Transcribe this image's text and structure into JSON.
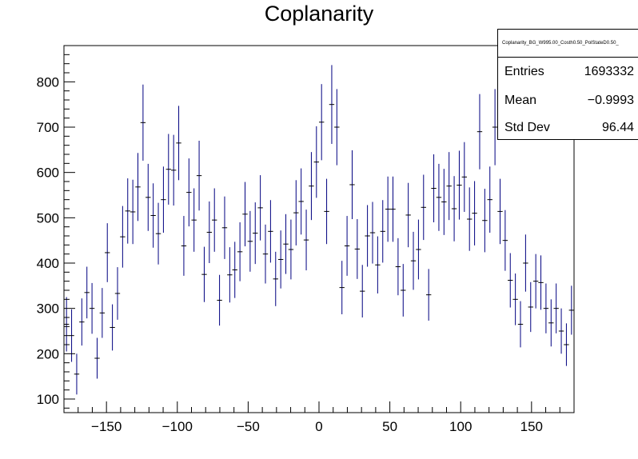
{
  "chart_data": {
    "type": "histogram-errorbars",
    "title": "Coplanarity",
    "xlabel": "",
    "ylabel": "",
    "xlim": [
      -180,
      180
    ],
    "ylim": [
      70,
      880
    ],
    "xticks": [
      -150,
      -100,
      -50,
      0,
      50,
      100,
      150
    ],
    "yticks": [
      100,
      200,
      300,
      400,
      500,
      600,
      700,
      800
    ],
    "bin_width": 3.6,
    "color": "#000080",
    "stats": {
      "name": "Coplanarity_BG_W995.00_Costh0.50_PolStateD0.50_",
      "entries_label": "Entries",
      "entries": "1693332",
      "mean_label": "Mean",
      "mean": "−0.9993",
      "std_label": "Std Dev",
      "std": "96.44"
    },
    "series": [
      {
        "x": [
          -178.2,
          -174.6,
          -171.0,
          -167.4,
          -163.8,
          -160.2,
          -156.6,
          -153.0,
          -149.4,
          -145.8,
          -142.2,
          -138.6,
          -135.0,
          -131.4,
          -127.8,
          -124.2,
          -120.6,
          -117.0,
          -113.4,
          -109.8,
          -106.2,
          -102.6,
          -99.0,
          -95.4,
          -91.8,
          -88.2,
          -84.6,
          -81.0,
          -77.4,
          -73.8,
          -70.2,
          -66.6,
          -63.0,
          -59.4,
          -55.8,
          -52.2,
          -48.6,
          -45.0,
          -41.4,
          -37.8,
          -34.2,
          -30.6,
          -27.0,
          -23.4,
          -19.8,
          -16.2,
          -12.6,
          -9.0,
          -5.4,
          -1.8,
          1.8,
          5.4,
          9.0,
          12.6,
          16.2,
          19.8,
          23.4,
          27.0,
          30.6,
          34.2,
          37.8,
          41.4,
          45.0,
          48.6,
          52.2,
          55.8,
          59.4,
          63.0,
          66.6,
          70.2,
          73.8,
          77.4,
          81.0,
          84.6,
          88.2,
          91.8,
          95.4,
          99.0,
          102.6,
          106.2,
          109.8,
          113.4,
          117.0,
          120.6,
          124.2,
          127.8,
          131.4,
          135.0,
          138.6,
          142.2,
          145.8,
          149.4,
          153.0,
          156.6,
          160.2,
          163.8,
          167.4,
          171.0,
          174.6,
          178.2
        ],
        "y": [
          265,
          240,
          155,
          270,
          335,
          300,
          190,
          290,
          423,
          258,
          333,
          458,
          515,
          513,
          568,
          710,
          545,
          505,
          465,
          540,
          607,
          605,
          665,
          438,
          556,
          495,
          593,
          375,
          468,
          495,
          318,
          478,
          374,
          385,
          425,
          508,
          448,
          466,
          522,
          420,
          470,
          365,
          408,
          442,
          430,
          511,
          536,
          451,
          570,
          623,
          711,
          514,
          750,
          700,
          346,
          438,
          573,
          431,
          338,
          460,
          467,
          396,
          470,
          519,
          519,
          392,
          340,
          506,
          405,
          430,
          523,
          330,
          565,
          545,
          535,
          570,
          520,
          572,
          590,
          497,
          510,
          690,
          494,
          540,
          700,
          514,
          450,
          362,
          320,
          265,
          400,
          303,
          360,
          357,
          300,
          268,
          300,
          250,
          220,
          296
        ],
        "err": [
          60,
          58,
          45,
          52,
          57,
          56,
          45,
          55,
          65,
          51,
          58,
          68,
          72,
          71,
          75,
          84,
          74,
          71,
          68,
          73,
          78,
          78,
          82,
          66,
          75,
          70,
          77,
          61,
          68,
          70,
          56,
          69,
          61,
          62,
          65,
          71,
          67,
          68,
          72,
          65,
          69,
          60,
          64,
          66,
          66,
          72,
          73,
          67,
          75,
          79,
          84,
          72,
          87,
          84,
          59,
          66,
          76,
          66,
          58,
          68,
          68,
          63,
          69,
          72,
          72,
          63,
          58,
          71,
          64,
          66,
          72,
          57,
          75,
          74,
          73,
          75,
          72,
          76,
          77,
          70,
          71,
          83,
          70,
          73,
          84,
          72,
          67,
          60,
          57,
          51,
          63,
          55,
          60,
          60,
          55,
          52,
          55,
          50,
          47,
          54
        ]
      }
    ]
  }
}
